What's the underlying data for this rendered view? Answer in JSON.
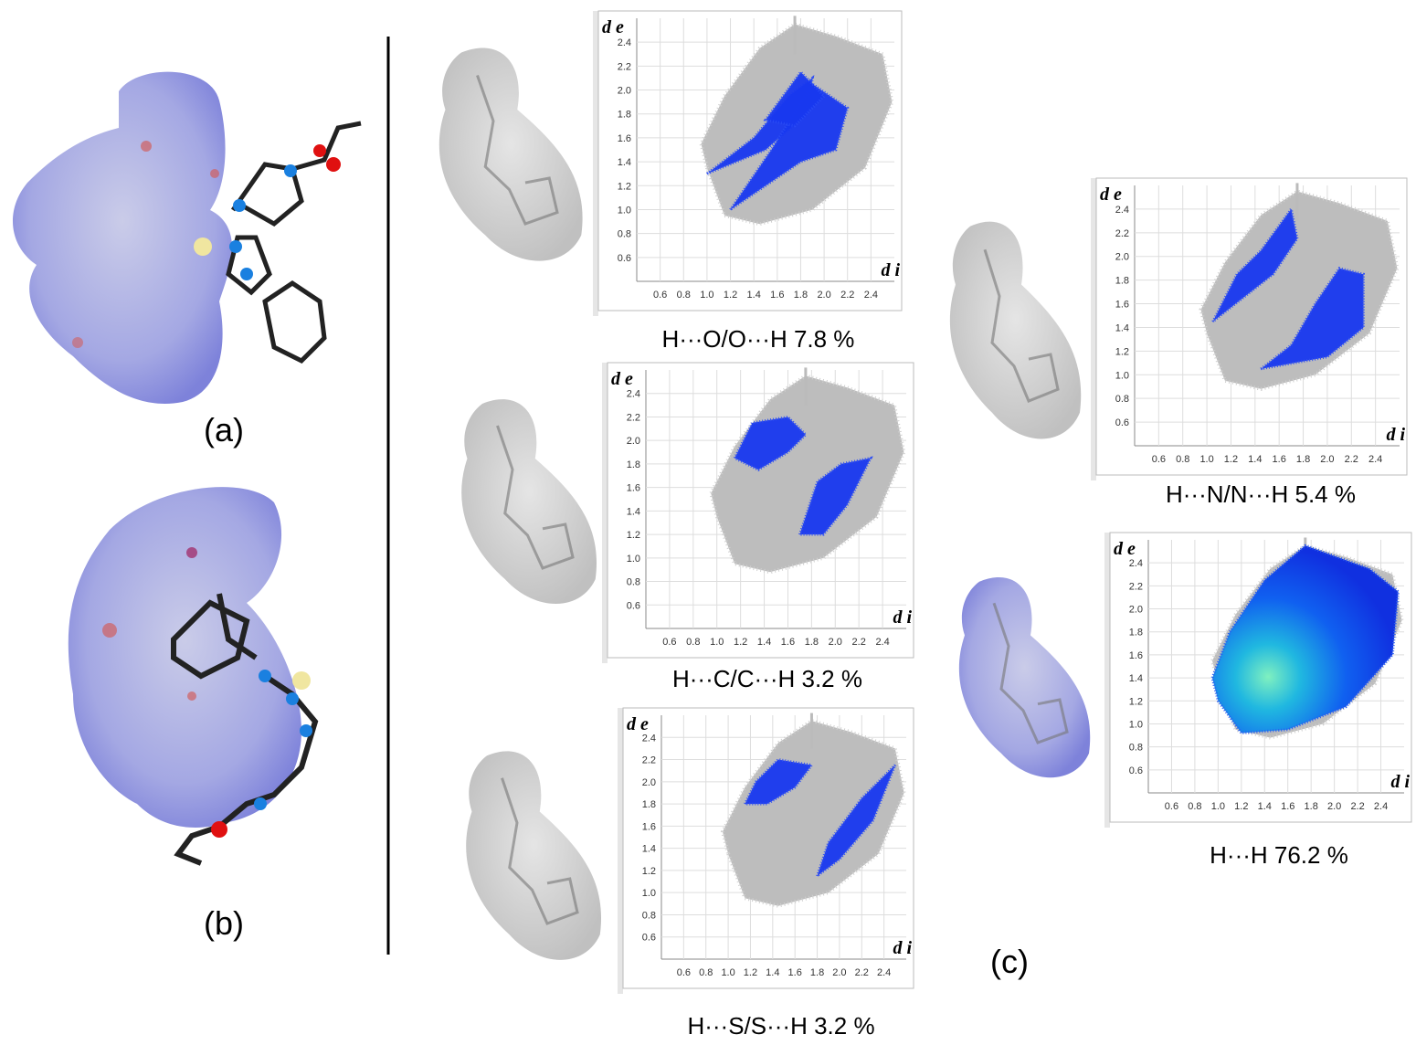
{
  "panels": {
    "a": "(a)",
    "b": "(b)",
    "c": "(c)"
  },
  "plots": [
    {
      "caption": "H···O/O···H   7.8 %",
      "y_axis_label": "d e",
      "x_axis_label": "d i",
      "yticks": [
        "0.6",
        "0.8",
        "1.0",
        "1.2",
        "1.4",
        "1.6",
        "1.8",
        "2.0",
        "2.2",
        "2.4"
      ],
      "xticks": [
        "0.6",
        "0.8",
        "1.0",
        "1.2",
        "1.4",
        "1.6",
        "1.8",
        "2.0",
        "2.2",
        "2.4"
      ]
    },
    {
      "caption": "H···C/C···H   3.2 %",
      "y_axis_label": "d e",
      "x_axis_label": "d i",
      "yticks": [
        "0.6",
        "0.8",
        "1.0",
        "1.2",
        "1.4",
        "1.6",
        "1.8",
        "2.0",
        "2.2",
        "2.4"
      ],
      "xticks": [
        "0.6",
        "0.8",
        "1.0",
        "1.2",
        "1.4",
        "1.6",
        "1.8",
        "2.0",
        "2.2",
        "2.4"
      ]
    },
    {
      "caption": "H···S/S···H   3.2 %",
      "y_axis_label": "d e",
      "x_axis_label": "d i",
      "yticks": [
        "0.6",
        "0.8",
        "1.0",
        "1.2",
        "1.4",
        "1.6",
        "1.8",
        "2.0",
        "2.2",
        "2.4"
      ],
      "xticks": [
        "0.6",
        "0.8",
        "1.0",
        "1.2",
        "1.4",
        "1.6",
        "1.8",
        "2.0",
        "2.2",
        "2.4"
      ]
    },
    {
      "caption": "H···N/N···H   5.4 %",
      "y_axis_label": "d e",
      "x_axis_label": "d i",
      "yticks": [
        "0.6",
        "0.8",
        "1.0",
        "1.2",
        "1.4",
        "1.6",
        "1.8",
        "2.0",
        "2.2",
        "2.4"
      ],
      "xticks": [
        "0.6",
        "0.8",
        "1.0",
        "1.2",
        "1.4",
        "1.6",
        "1.8",
        "2.0",
        "2.2",
        "2.4"
      ]
    },
    {
      "caption": "H···H   76.2 %",
      "y_axis_label": "d e",
      "x_axis_label": "d i",
      "yticks": [
        "0.6",
        "0.8",
        "1.0",
        "1.2",
        "1.4",
        "1.6",
        "1.8",
        "2.0",
        "2.2",
        "2.4"
      ],
      "xticks": [
        "0.6",
        "0.8",
        "1.0",
        "1.2",
        "1.4",
        "1.6",
        "1.8",
        "2.0",
        "2.2",
        "2.4"
      ]
    }
  ]
}
